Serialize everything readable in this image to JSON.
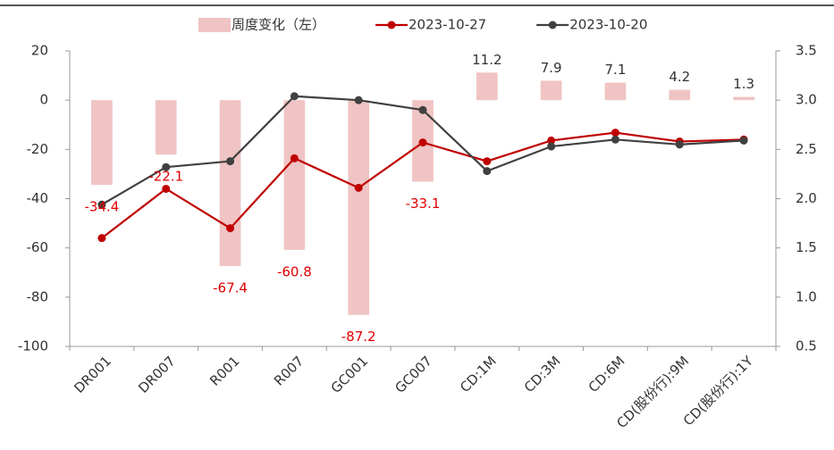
{
  "chart_data": {
    "type": "bar-line",
    "categories": [
      "DR001",
      "DR007",
      "R001",
      "R007",
      "GC001",
      "GC007",
      "CD:1M",
      "CD:3M",
      "CD:6M",
      "CD(股份行):9M",
      "CD(股份行):1Y"
    ],
    "series": [
      {
        "name": "周度变化（左）",
        "type": "bar",
        "color": "#f0c4c4",
        "values": [
          -34.4,
          -22.1,
          -67.4,
          -60.8,
          -87.2,
          -33.1,
          11.2,
          7.9,
          7.1,
          4.2,
          1.3
        ]
      },
      {
        "name": "2023-10-27",
        "type": "line",
        "axis": "y2",
        "color": "#c00000",
        "values": [
          1.6,
          2.1,
          1.7,
          2.41,
          2.11,
          2.57,
          2.38,
          2.59,
          2.67,
          2.58,
          2.6
        ]
      },
      {
        "name": "2023-10-20",
        "type": "line",
        "axis": "y2",
        "color": "#404040",
        "values": [
          1.94,
          2.32,
          2.38,
          3.04,
          3.0,
          2.9,
          2.28,
          2.53,
          2.6,
          2.55,
          2.59
        ]
      }
    ],
    "ylim": [
      -100,
      20
    ],
    "yticks": [
      -100,
      -80,
      -60,
      -40,
      -20,
      0,
      20
    ],
    "y2lim": [
      0.5,
      3.5
    ],
    "y2ticks": [
      {
        "value": 0.5,
        "label": "0.5"
      },
      {
        "value": 1,
        "label": "1.0"
      },
      {
        "value": 1.5,
        "label": "1.5"
      },
      {
        "value": 2,
        "label": "2.0"
      },
      {
        "value": 2.5,
        "label": "2.5"
      },
      {
        "value": 3,
        "label": "3.0"
      },
      {
        "value": 3.5,
        "label": "3.5"
      }
    ],
    "negative_label_color": "#e00000"
  }
}
